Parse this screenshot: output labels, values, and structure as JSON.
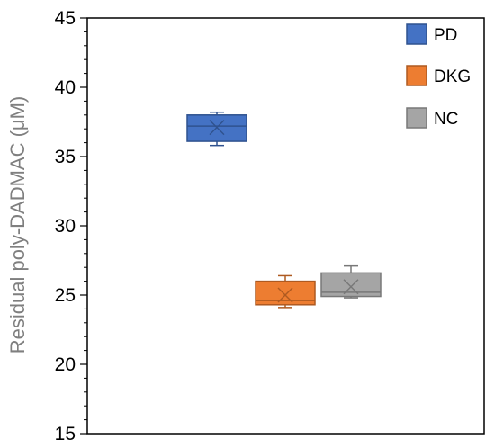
{
  "chart_data": {
    "type": "box",
    "title": "",
    "xlabel": "",
    "ylabel": "Residual poly-DADMAC (μM)",
    "ylim": [
      15,
      45
    ],
    "yticks": [
      15,
      20,
      25,
      30,
      35,
      40,
      45
    ],
    "minor_ticks_per_major": 5,
    "grid": false,
    "legend_position": "top-right",
    "series": [
      {
        "name": "PD",
        "color": "#4472C4",
        "edge": "#2F528F",
        "whisker_low": 35.8,
        "q1": 36.1,
        "median": 37.2,
        "mean": 37.1,
        "q3": 38.0,
        "whisker_high": 38.2
      },
      {
        "name": "DKG",
        "color": "#ED7D31",
        "edge": "#AE5A21",
        "whisker_low": 24.1,
        "q1": 24.3,
        "median": 24.6,
        "mean": 25.0,
        "q3": 26.0,
        "whisker_high": 26.4
      },
      {
        "name": "NC",
        "color": "#A5A5A5",
        "edge": "#787878",
        "whisker_low": 24.8,
        "q1": 24.9,
        "median": 25.2,
        "mean": 25.6,
        "q3": 26.6,
        "whisker_high": 27.1
      }
    ]
  }
}
